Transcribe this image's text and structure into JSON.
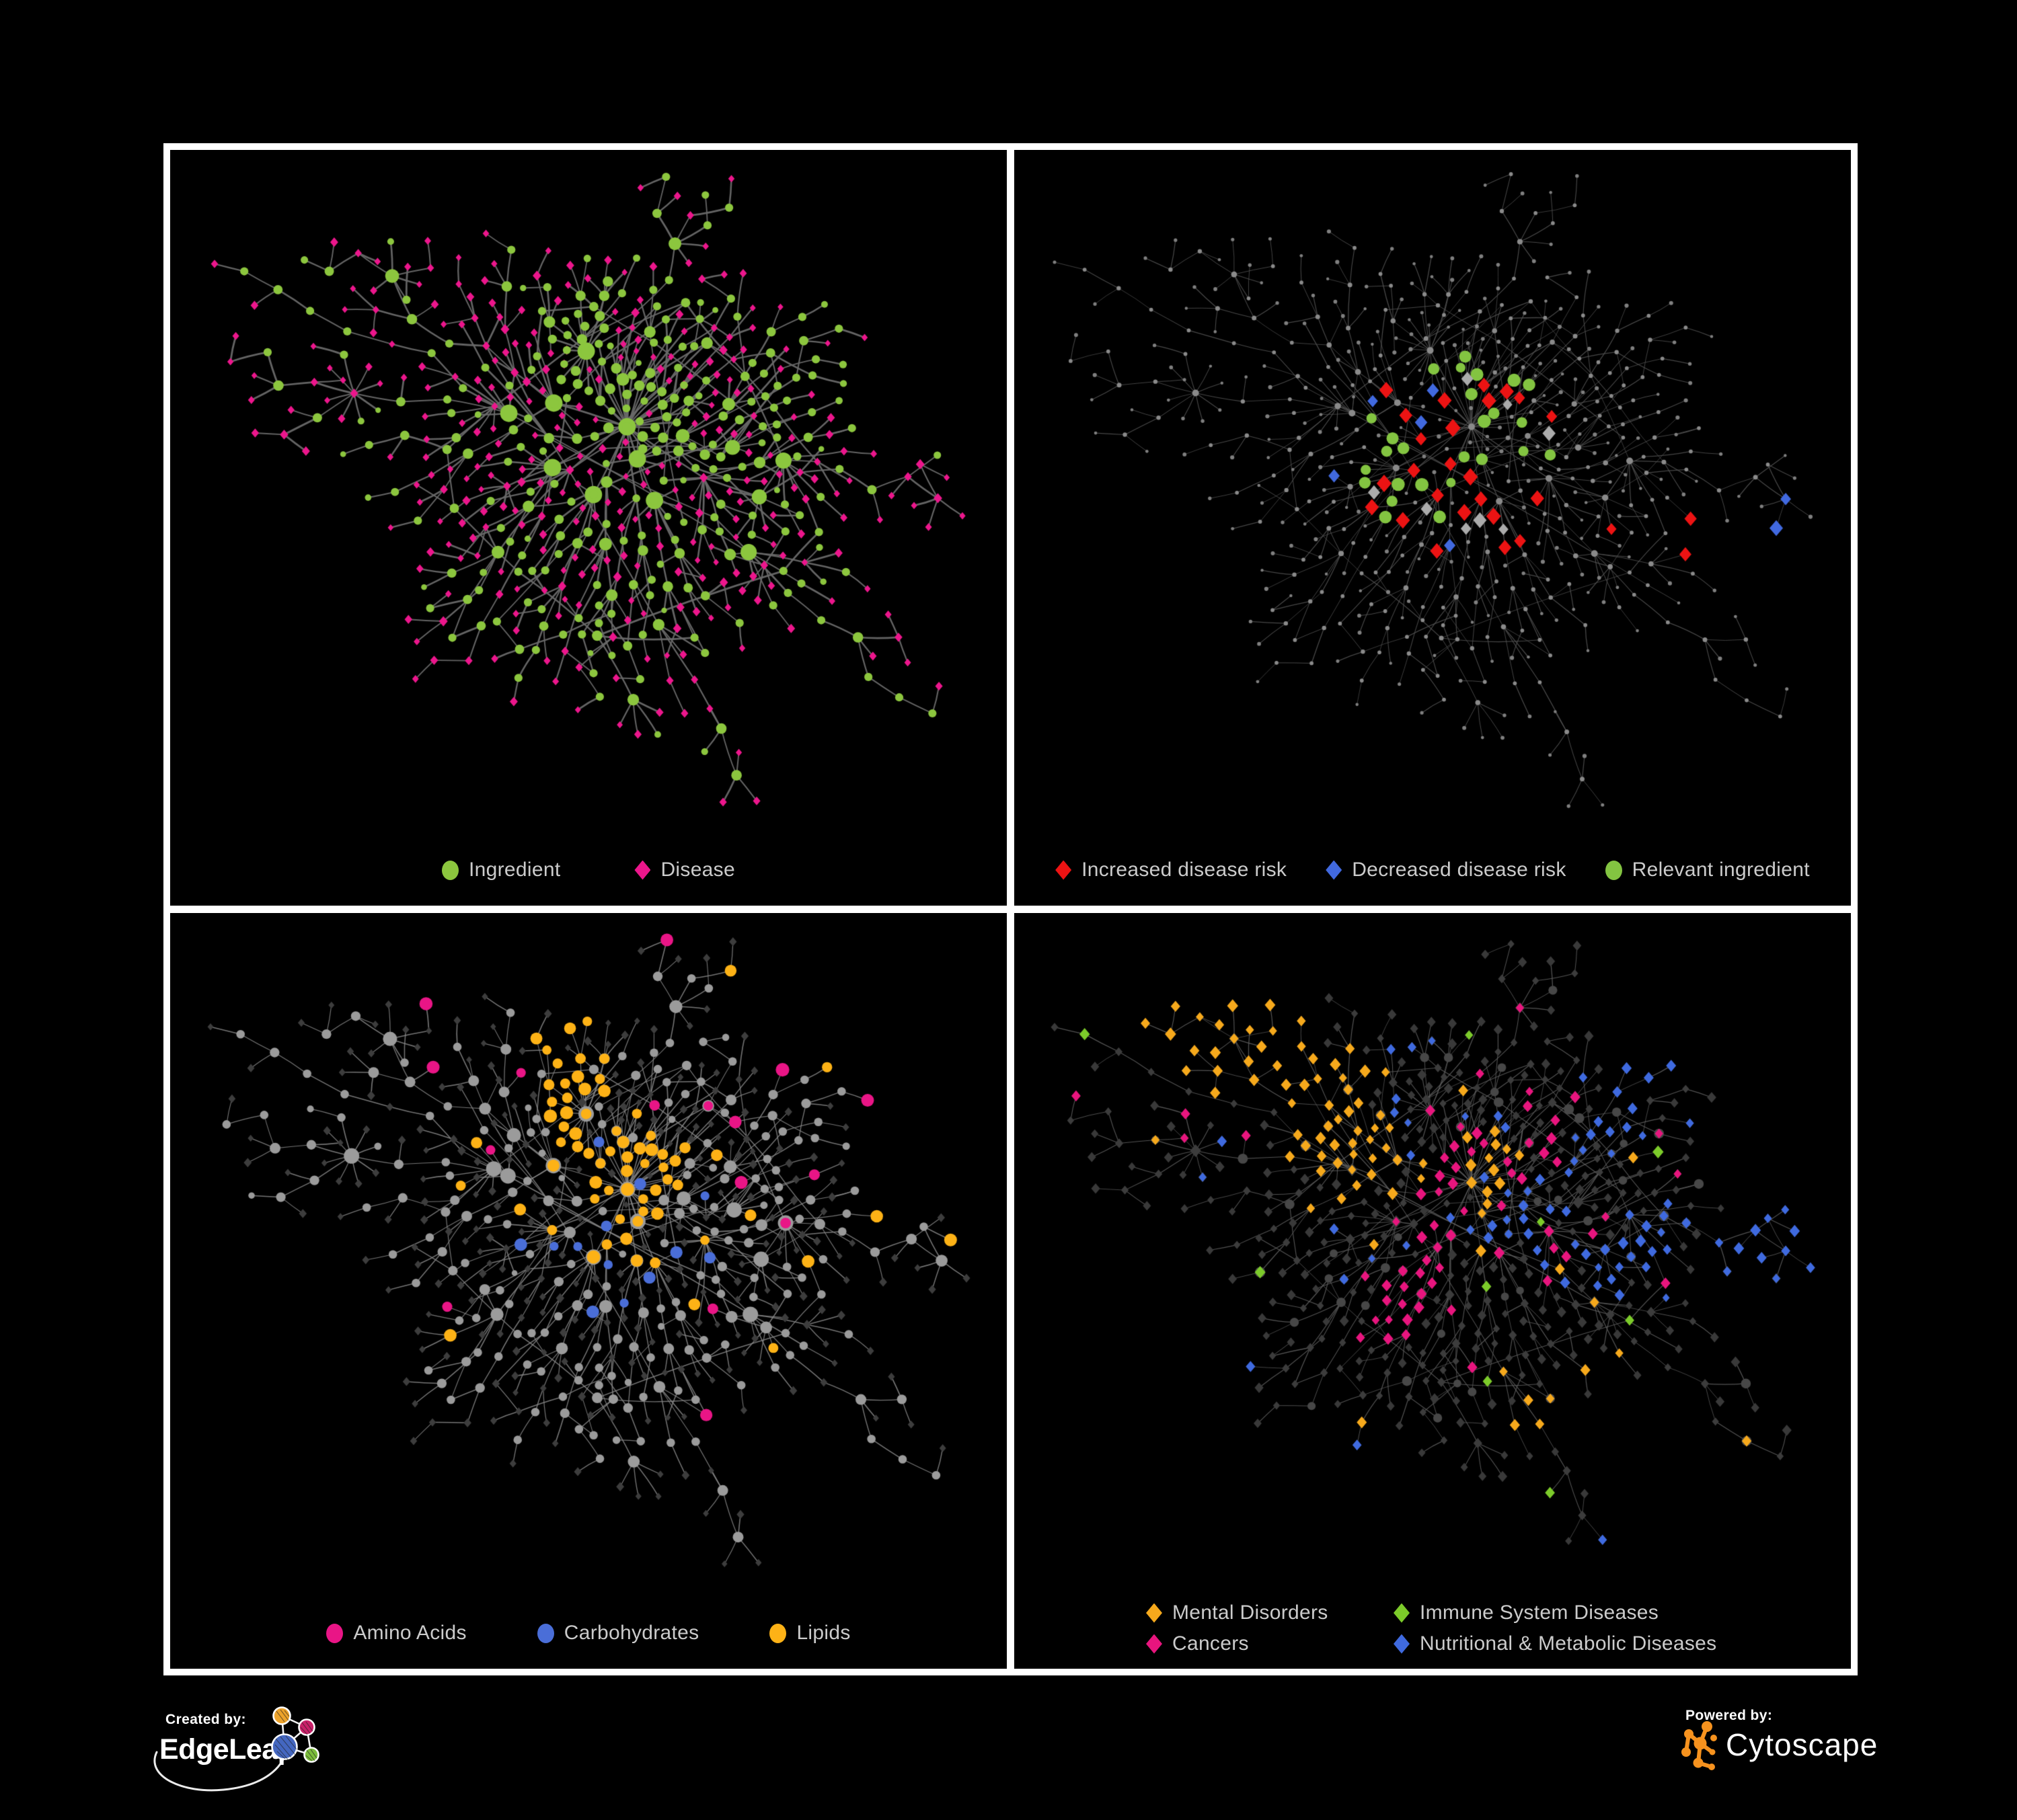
{
  "page": {
    "background": "#000000",
    "frame_color": "#ffffff"
  },
  "footer": {
    "created_by": "Created by:",
    "brand_left": "EdgeLeap",
    "powered_by": "Powered by:",
    "brand_right": "Cytoscape",
    "edgeleap_logo_colors": {
      "orange": "#eda32b",
      "magenta": "#c92069",
      "blue": "#4467c0",
      "green": "#7cbe3c",
      "lines": "#ffffff"
    },
    "cytoscape_logo_color": "#f6921e"
  },
  "network_model": {
    "seed": 1337,
    "nodes": 620,
    "extra_edges": 24,
    "chain_p": 0.24,
    "pref_p": 0.6
  },
  "panels": [
    {
      "name": "ingredient-disease-network",
      "legend": {
        "columns": 0,
        "gap": 110,
        "items": [
          {
            "shape": "circle",
            "color": "#8cc63e",
            "label": "Ingredient"
          },
          {
            "shape": "diamond",
            "color": "#ec168c",
            "label": "Disease"
          }
        ]
      },
      "style": {
        "seed": 21,
        "edge_color": "#696969",
        "edge_width": 2.3,
        "edge_alpha": 0.95,
        "leaf": {
          "shape": "diamond",
          "color": "#ec168c",
          "size": 5.9
        },
        "alt_leaf": {
          "shape": "circle",
          "color": "#8cc63e",
          "size": 4.8
        },
        "leaf_alt_p": 0.14,
        "internal": {
          "shape": "circle",
          "color": "#8cc63e",
          "size_base": 4.4,
          "size_per_deg": 0.85,
          "size_max": 13
        },
        "alt_internal": {
          "shape": "diamond",
          "color": "#ec168c",
          "size": 6.4
        },
        "internal_alt_p": 0.27,
        "groups": [
          {
            "region": "center_top",
            "count": 48,
            "shape": "circle",
            "color": "#8cc63e",
            "size": 6.8
          }
        ]
      }
    },
    {
      "name": "disease-risk-network",
      "legend": {
        "columns": 0,
        "gap": 58,
        "items": [
          {
            "shape": "diamond",
            "color": "#ec1313",
            "label": "Increased disease risk"
          },
          {
            "shape": "diamond",
            "color": "#4169df",
            "label": "Decreased disease risk"
          },
          {
            "shape": "circle",
            "color": "#83c441",
            "label": "Relevant ingredient"
          }
        ]
      },
      "style": {
        "seed": 33,
        "edge_color": "#545454",
        "edge_width": 1.05,
        "edge_alpha": 0.85,
        "leaf": {
          "shape": "circle",
          "color": "#7f7f7f",
          "size": 2.6
        },
        "alt_leaf": {
          "shape": "circle",
          "color": "#7f7f7f",
          "size": 2.6
        },
        "leaf_alt_p": 0,
        "internal": {
          "shape": "circle",
          "color": "#8a8a8a",
          "size_base": 2.3,
          "size_per_deg": 0.3,
          "size_max": 5
        },
        "alt_internal": {
          "shape": "circle",
          "color": "#8a8a8a",
          "size": 3
        },
        "internal_alt_p": 0,
        "groups": [
          {
            "region": "scatter_core",
            "count": 24,
            "shape": "diamond",
            "color": "#ec1313",
            "size": 11.5
          },
          {
            "region": "bottom_right",
            "count": 3,
            "shape": "diamond",
            "color": "#ec1313",
            "size": 10.5
          },
          {
            "region": "right_top",
            "count": 2,
            "shape": "diamond",
            "color": "#4169df",
            "size": 10.5
          },
          {
            "region": "scatter_core_left",
            "count": 5,
            "shape": "diamond",
            "color": "#4169df",
            "size": 10.5
          },
          {
            "region": "scatter_core",
            "count": 8,
            "shape": "diamond",
            "color": "#ababab",
            "size": 10
          },
          {
            "region": "scatter_core",
            "count": 26,
            "shape": "circle",
            "color": "#83c441",
            "size": 8.5
          }
        ]
      }
    },
    {
      "name": "nutrient-classes-network",
      "legend": {
        "columns": 0,
        "gap": 105,
        "items": [
          {
            "shape": "circle",
            "color": "#e91586",
            "label": "Amino Acids"
          },
          {
            "shape": "circle",
            "color": "#4a6ed8",
            "label": "Carbohydrates"
          },
          {
            "shape": "circle",
            "color": "#fdb216",
            "label": "Lipids"
          }
        ]
      },
      "style": {
        "seed": 55,
        "edge_color": "#8a8a8a",
        "edge_width": 1.35,
        "edge_alpha": 0.85,
        "leaf": {
          "shape": "diamond",
          "color": "#3d3d3d",
          "size": 5.9
        },
        "alt_leaf": {
          "shape": "circle",
          "color": "#9b9b9b",
          "size": 5
        },
        "leaf_alt_p": 0.07,
        "internal": {
          "shape": "circle",
          "color": "#9b9b9b",
          "size_base": 4.6,
          "size_per_deg": 0.85,
          "size_max": 11.5
        },
        "alt_internal": {
          "shape": "diamond",
          "color": "#3d3d3d",
          "size": 6.2
        },
        "internal_alt_p": 0.16,
        "groups": [
          {
            "region": "center_top",
            "count": 56,
            "shape": "circle",
            "color": "#fdb216",
            "size": 8.4
          },
          {
            "region": "scatter",
            "count": 15,
            "shape": "circle",
            "color": "#fdb216",
            "size": 8.4
          },
          {
            "region": "scatter_core",
            "count": 13,
            "shape": "circle",
            "color": "#4a6ed8",
            "size": 8
          },
          {
            "region": "scatter",
            "count": 16,
            "shape": "circle",
            "color": "#e91586",
            "size": 8.6
          }
        ]
      }
    },
    {
      "name": "disease-classes-network",
      "legend": {
        "columns": 2,
        "gap": 0,
        "items": [
          {
            "shape": "diamond",
            "color": "#f6a91c",
            "label": "Mental Disorders"
          },
          {
            "shape": "diamond",
            "color": "#7ccb2a",
            "label": "Immune System Diseases"
          },
          {
            "shape": "diamond",
            "color": "#e8157e",
            "label": "Cancers"
          },
          {
            "shape": "diamond",
            "color": "#3f6adf",
            "label": "Nutritional & Metabolic Diseases"
          }
        ]
      },
      "style": {
        "seed": 77,
        "edge_color": "#616161",
        "edge_width": 1.05,
        "edge_alpha": 0.85,
        "leaf": {
          "shape": "diamond",
          "color": "#393939",
          "size": 7
        },
        "alt_leaf": {
          "shape": "diamond",
          "color": "#393939",
          "size": 7
        },
        "leaf_alt_p": 0,
        "internal": {
          "shape": "diamond",
          "color": "#3c3c3c",
          "size_base": 5,
          "size_per_deg": 0.55,
          "size_max": 9.5
        },
        "alt_internal": {
          "shape": "circle",
          "color": "#474747",
          "size": 6.5
        },
        "internal_alt_p": 0.22,
        "groups": [
          {
            "region": "left",
            "count": 84,
            "shape": "diamond",
            "color": "#f6a91c",
            "size": 8.4
          },
          {
            "region": "center",
            "count": 54,
            "shape": "diamond",
            "color": "#e8157e",
            "size": 8.2
          },
          {
            "region": "right",
            "count": 36,
            "shape": "diamond",
            "color": "#3f6adf",
            "size": 8.2
          },
          {
            "region": "right_top",
            "count": 26,
            "shape": "diamond",
            "color": "#3f6adf",
            "size": 7.8
          },
          {
            "region": "scatter",
            "count": 24,
            "shape": "diamond",
            "color": "#3f6adf",
            "size": 7.4
          },
          {
            "region": "scatter",
            "count": 12,
            "shape": "diamond",
            "color": "#e8157e",
            "size": 7.6
          },
          {
            "region": "scatter",
            "count": 8,
            "shape": "diamond",
            "color": "#f6a91c",
            "size": 7.6
          },
          {
            "region": "scatter",
            "count": 9,
            "shape": "diamond",
            "color": "#7ccb2a",
            "size": 8.2
          }
        ]
      }
    }
  ]
}
